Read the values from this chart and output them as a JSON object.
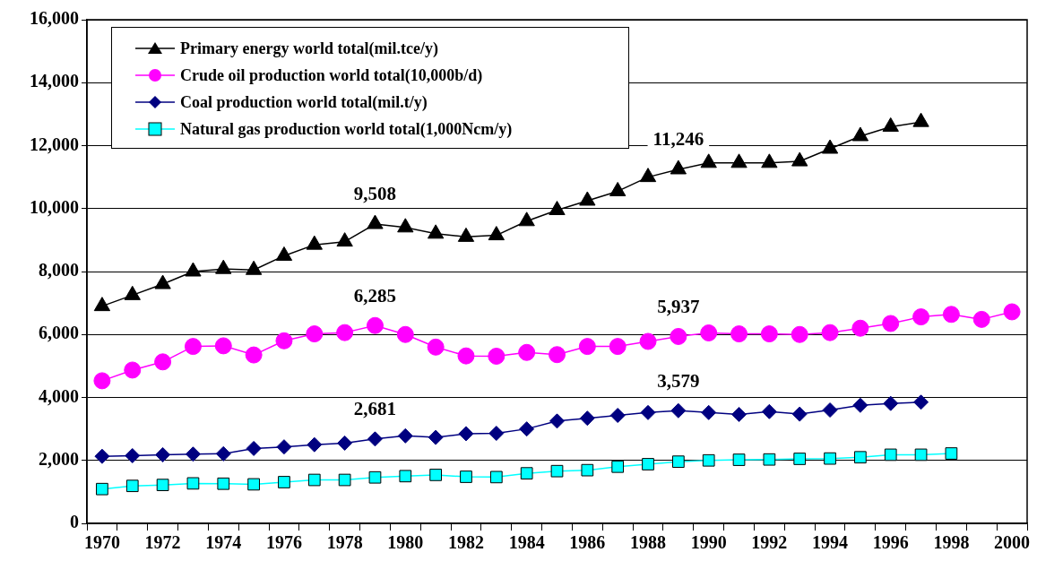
{
  "chart_data": {
    "type": "line",
    "categories": [
      "1970",
      null,
      "1972",
      null,
      "1974",
      null,
      "1976",
      null,
      "1978",
      null,
      "1980",
      null,
      "1982",
      null,
      "1984",
      null,
      "1986",
      null,
      "1988",
      null,
      "1990",
      null,
      "1992",
      null,
      "1994",
      null,
      "1996",
      null,
      "1998",
      null,
      "2000"
    ],
    "series": [
      {
        "name": "Primary energy world total(mil.tce/y)",
        "color": "#000000",
        "marker": "triangle",
        "values": [
          6900,
          7250,
          7600,
          8000,
          8080,
          8050,
          8500,
          8850,
          8950,
          9508,
          9400,
          9200,
          9100,
          9150,
          9600,
          9950,
          10250,
          10550,
          11000,
          11246,
          11450,
          11450,
          11450,
          11500,
          11900,
          12300,
          12600,
          12750,
          null,
          null,
          null
        ],
        "value_labels": [
          null,
          null,
          null,
          null,
          null,
          null,
          null,
          null,
          null,
          "9,508",
          null,
          null,
          null,
          null,
          null,
          null,
          null,
          null,
          null,
          "11,246",
          null,
          null,
          null,
          null,
          null,
          null,
          null,
          null,
          null,
          null,
          null
        ]
      },
      {
        "name": "Crude oil production world total(10,000b/d)",
        "color": "#ff00ff",
        "marker": "circle",
        "values": [
          4530,
          4870,
          5130,
          5620,
          5640,
          5350,
          5800,
          6020,
          6060,
          6285,
          6000,
          5600,
          5320,
          5310,
          5430,
          5360,
          5620,
          5620,
          5780,
          5937,
          6050,
          6020,
          6020,
          6000,
          6060,
          6200,
          6350,
          6560,
          6640,
          6480,
          6720
        ],
        "value_labels": [
          null,
          null,
          null,
          null,
          null,
          null,
          null,
          null,
          null,
          "6,285",
          null,
          null,
          null,
          null,
          null,
          null,
          null,
          null,
          null,
          "5,937",
          null,
          null,
          null,
          null,
          null,
          null,
          null,
          null,
          null,
          null,
          null
        ]
      },
      {
        "name": "Coal production world total(mil.t/y)",
        "color": "#000080",
        "marker": "diamond",
        "values": [
          2130,
          2150,
          2180,
          2200,
          2210,
          2380,
          2430,
          2500,
          2550,
          2681,
          2780,
          2730,
          2850,
          2860,
          3000,
          3250,
          3340,
          3430,
          3520,
          3579,
          3520,
          3460,
          3550,
          3470,
          3600,
          3750,
          3810,
          3850,
          null,
          null,
          null
        ],
        "value_labels": [
          null,
          null,
          null,
          null,
          null,
          null,
          null,
          null,
          null,
          "2,681",
          null,
          null,
          null,
          null,
          null,
          null,
          null,
          null,
          null,
          "3,579",
          null,
          null,
          null,
          null,
          null,
          null,
          null,
          null,
          null,
          null,
          null
        ]
      },
      {
        "name": "Natural gas production world total(1,000Ncm/y)",
        "color": "#00ffff",
        "marker": "square",
        "values": [
          1090,
          1190,
          1220,
          1270,
          1260,
          1240,
          1310,
          1380,
          1380,
          1460,
          1500,
          1540,
          1480,
          1470,
          1590,
          1660,
          1690,
          1800,
          1880,
          1960,
          2000,
          2020,
          2030,
          2050,
          2060,
          2100,
          2180,
          2180,
          2220,
          null,
          null
        ]
      }
    ],
    "ylim": [
      0,
      16000
    ],
    "yticks": [
      {
        "value": 0,
        "label": "0"
      },
      {
        "value": 2000,
        "label": "2,000"
      },
      {
        "value": 4000,
        "label": "4,000"
      },
      {
        "value": 6000,
        "label": "6,000"
      },
      {
        "value": 8000,
        "label": "8,000"
      },
      {
        "value": 10000,
        "label": "10,000"
      },
      {
        "value": 12000,
        "label": "12,000"
      },
      {
        "value": 14000,
        "label": "14,000"
      },
      {
        "value": 16000,
        "label": "16,000"
      }
    ],
    "grid": "y",
    "legend": "top left"
  }
}
